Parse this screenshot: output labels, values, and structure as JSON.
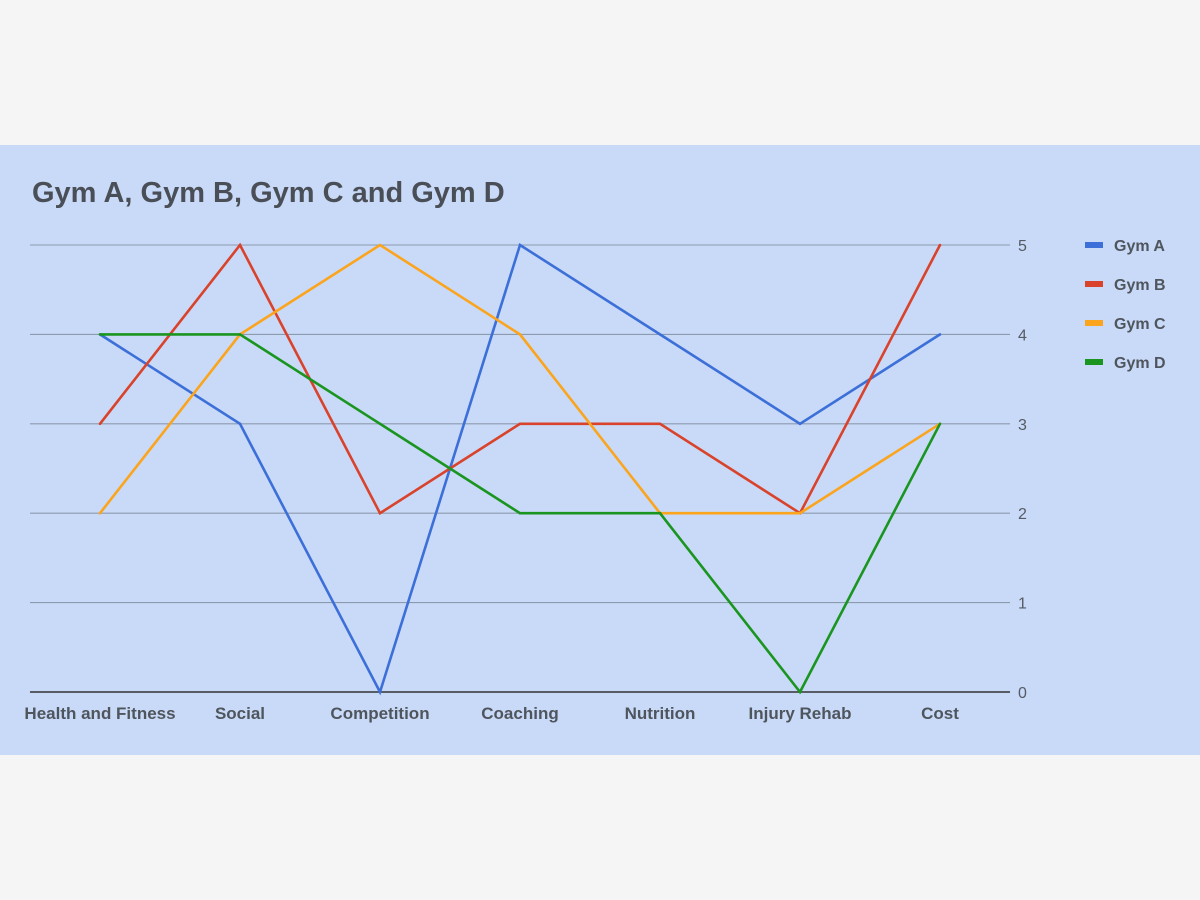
{
  "chart_data": {
    "type": "line",
    "title": "Gym A, Gym B, Gym C and Gym D",
    "xlabel": "",
    "ylabel": "",
    "categories": [
      "Health and Fitness",
      "Social",
      "Competition",
      "Coaching",
      "Nutrition",
      "Injury Rehab",
      "Cost"
    ],
    "ylim": [
      0,
      5
    ],
    "yticks": [
      "0",
      "1",
      "2",
      "3",
      "4",
      "5"
    ],
    "y_axis_side": "right",
    "grid": true,
    "legend_position": "right",
    "series": [
      {
        "name": "Gym A",
        "color": "#3c6fd8",
        "values": [
          4,
          3,
          0,
          5,
          4,
          3,
          4
        ]
      },
      {
        "name": "Gym B",
        "color": "#d9432b",
        "values": [
          3,
          5,
          2,
          3,
          3,
          2,
          5
        ]
      },
      {
        "name": "Gym C",
        "color": "#fba41d",
        "values": [
          2,
          4,
          5,
          4,
          2,
          2,
          3
        ]
      },
      {
        "name": "Gym D",
        "color": "#1a951f",
        "values": [
          4,
          4,
          3,
          2,
          2,
          0,
          3
        ]
      }
    ]
  }
}
